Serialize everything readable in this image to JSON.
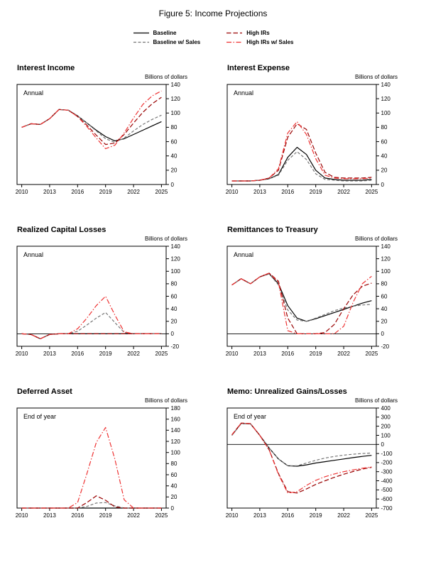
{
  "figure_title": "Figure 5: Income Projections",
  "legend": [
    {
      "label": "Baseline",
      "color": "#000000",
      "dash": "solid"
    },
    {
      "label": "Baseline w/ Sales",
      "color": "#777777",
      "dash": "dashed"
    },
    {
      "label": "High IRs",
      "color": "#990000",
      "dash": "longdash"
    },
    {
      "label": "High IRs w/ Sales",
      "color": "#ee3333",
      "dash": "dashdot"
    }
  ],
  "chart_data": [
    {
      "type": "line",
      "title": "Interest Income",
      "units_label": "Billions of dollars",
      "frequency_label": "Annual",
      "x": [
        2010,
        2011,
        2012,
        2013,
        2014,
        2015,
        2016,
        2017,
        2018,
        2019,
        2020,
        2021,
        2022,
        2023,
        2024,
        2025
      ],
      "x_ticks": [
        2010,
        2013,
        2016,
        2019,
        2022,
        2025
      ],
      "ylim": [
        0,
        140
      ],
      "y_ticks": [
        140,
        120,
        100,
        80,
        60,
        40,
        20,
        0
      ],
      "zero_line": false,
      "series": [
        {
          "name": "Baseline",
          "values": [
            80,
            85,
            84,
            92,
            105,
            104,
            96,
            86,
            76,
            67,
            61,
            64,
            70,
            76,
            82,
            88
          ]
        },
        {
          "name": "Baseline w/ Sales",
          "values": [
            80,
            85,
            84,
            92,
            105,
            104,
            96,
            86,
            75,
            64,
            59,
            65,
            75,
            84,
            91,
            97
          ]
        },
        {
          "name": "High IRs",
          "values": [
            80,
            85,
            84,
            92,
            105,
            104,
            95,
            83,
            69,
            56,
            58,
            70,
            86,
            101,
            113,
            122
          ]
        },
        {
          "name": "High IRs w/ Sales",
          "values": [
            80,
            85,
            84,
            92,
            105,
            104,
            95,
            81,
            65,
            50,
            55,
            72,
            93,
            112,
            124,
            131
          ]
        }
      ]
    },
    {
      "type": "line",
      "title": "Interest Expense",
      "units_label": "Billions of dollars",
      "frequency_label": "Annual",
      "x": [
        2010,
        2011,
        2012,
        2013,
        2014,
        2015,
        2016,
        2017,
        2018,
        2019,
        2020,
        2021,
        2022,
        2023,
        2024,
        2025
      ],
      "x_ticks": [
        2010,
        2013,
        2016,
        2019,
        2022,
        2025
      ],
      "ylim": [
        0,
        140
      ],
      "y_ticks": [
        140,
        120,
        100,
        80,
        60,
        40,
        20,
        0
      ],
      "zero_line": false,
      "series": [
        {
          "name": "Baseline",
          "values": [
            5,
            5,
            5,
            6,
            8,
            14,
            38,
            52,
            42,
            20,
            9,
            7,
            6,
            6,
            6,
            7
          ]
        },
        {
          "name": "Baseline w/ Sales",
          "values": [
            5,
            5,
            5,
            6,
            8,
            13,
            34,
            46,
            35,
            15,
            7,
            6,
            5,
            5,
            5,
            6
          ]
        },
        {
          "name": "High IRs",
          "values": [
            5,
            5,
            5,
            6,
            9,
            20,
            66,
            85,
            77,
            44,
            17,
            10,
            9,
            9,
            9,
            10
          ]
        },
        {
          "name": "High IRs w/ Sales",
          "values": [
            5,
            5,
            5,
            6,
            9,
            22,
            72,
            88,
            70,
            36,
            13,
            9,
            8,
            8,
            8,
            9
          ]
        }
      ]
    },
    {
      "type": "line",
      "title": "Realized Capital Losses",
      "units_label": "Billions of dollars",
      "frequency_label": "Annual",
      "x": [
        2010,
        2011,
        2012,
        2013,
        2014,
        2015,
        2016,
        2017,
        2018,
        2019,
        2020,
        2021,
        2022,
        2023,
        2024,
        2025
      ],
      "x_ticks": [
        2010,
        2013,
        2016,
        2019,
        2022,
        2025
      ],
      "ylim": [
        -20,
        140
      ],
      "y_ticks": [
        140,
        120,
        100,
        80,
        60,
        40,
        20,
        0,
        -20
      ],
      "zero_line": true,
      "series": [
        {
          "name": "Baseline",
          "values": [
            0,
            -1,
            -8,
            -1,
            0,
            0,
            0,
            0,
            0,
            0,
            0,
            0,
            0,
            0,
            0,
            0
          ]
        },
        {
          "name": "Baseline w/ Sales",
          "values": [
            0,
            -1,
            -8,
            -1,
            0,
            0,
            4,
            14,
            25,
            34,
            18,
            2,
            0,
            0,
            0,
            0
          ]
        },
        {
          "name": "High IRs",
          "values": [
            0,
            -1,
            -8,
            -1,
            0,
            0,
            0,
            0,
            0,
            0,
            0,
            0,
            0,
            0,
            0,
            0
          ]
        },
        {
          "name": "High IRs w/ Sales",
          "values": [
            0,
            -1,
            -8,
            -1,
            0,
            0,
            8,
            25,
            45,
            60,
            30,
            3,
            0,
            0,
            0,
            0
          ]
        }
      ]
    },
    {
      "type": "line",
      "title": "Remittances to Treasury",
      "units_label": "Billions of dollars",
      "frequency_label": "Annual",
      "x": [
        2010,
        2011,
        2012,
        2013,
        2014,
        2015,
        2016,
        2017,
        2018,
        2019,
        2020,
        2021,
        2022,
        2023,
        2024,
        2025
      ],
      "x_ticks": [
        2010,
        2013,
        2016,
        2019,
        2022,
        2025
      ],
      "ylim": [
        -20,
        140
      ],
      "y_ticks": [
        140,
        120,
        100,
        80,
        60,
        40,
        20,
        0,
        -20
      ],
      "zero_line": true,
      "series": [
        {
          "name": "Baseline",
          "values": [
            78,
            88,
            80,
            91,
            96,
            80,
            45,
            25,
            20,
            24,
            29,
            34,
            39,
            44,
            49,
            53
          ]
        },
        {
          "name": "Baseline w/ Sales",
          "values": [
            78,
            88,
            80,
            91,
            96,
            78,
            38,
            22,
            20,
            25,
            31,
            37,
            41,
            44,
            46,
            47
          ]
        },
        {
          "name": "High IRs",
          "values": [
            78,
            88,
            80,
            91,
            97,
            84,
            25,
            0,
            0,
            0,
            2,
            15,
            40,
            62,
            76,
            81
          ]
        },
        {
          "name": "High IRs w/ Sales",
          "values": [
            78,
            88,
            80,
            91,
            97,
            82,
            5,
            0,
            0,
            0,
            0,
            0,
            12,
            50,
            80,
            92
          ]
        }
      ]
    },
    {
      "type": "line",
      "title": "Deferred Asset",
      "units_label": "Billions of dollars",
      "frequency_label": "End of year",
      "x": [
        2010,
        2011,
        2012,
        2013,
        2014,
        2015,
        2016,
        2017,
        2018,
        2019,
        2020,
        2021,
        2022,
        2023,
        2024,
        2025
      ],
      "x_ticks": [
        2010,
        2013,
        2016,
        2019,
        2022,
        2025
      ],
      "ylim": [
        0,
        180
      ],
      "y_ticks": [
        180,
        160,
        140,
        120,
        100,
        80,
        60,
        40,
        20,
        0
      ],
      "zero_line": false,
      "series": [
        {
          "name": "Baseline",
          "values": [
            0,
            0,
            0,
            0,
            0,
            0,
            0,
            0,
            0,
            0,
            0,
            0,
            0,
            0,
            0,
            0
          ]
        },
        {
          "name": "Baseline w/ Sales",
          "values": [
            0,
            0,
            0,
            0,
            0,
            0,
            0,
            3,
            9,
            10,
            4,
            0,
            0,
            0,
            0,
            0
          ]
        },
        {
          "name": "High IRs",
          "values": [
            0,
            0,
            0,
            0,
            0,
            0,
            0,
            10,
            22,
            14,
            2,
            0,
            0,
            0,
            0,
            0
          ]
        },
        {
          "name": "High IRs w/ Sales",
          "values": [
            0,
            0,
            0,
            0,
            0,
            0,
            10,
            62,
            118,
            145,
            88,
            15,
            0,
            0,
            0,
            0
          ]
        }
      ]
    },
    {
      "type": "line",
      "title": "Memo: Unrealized Gains/Losses",
      "units_label": "Billions of dollars",
      "frequency_label": "End of year",
      "x": [
        2010,
        2011,
        2012,
        2013,
        2014,
        2015,
        2016,
        2017,
        2018,
        2019,
        2020,
        2021,
        2022,
        2023,
        2024,
        2025
      ],
      "x_ticks": [
        2010,
        2013,
        2016,
        2019,
        2022,
        2025
      ],
      "ylim": [
        -700,
        400
      ],
      "y_ticks": [
        400,
        300,
        200,
        100,
        0,
        -100,
        -200,
        -300,
        -400,
        -500,
        -600,
        -700
      ],
      "zero_line": true,
      "series": [
        {
          "name": "Baseline",
          "values": [
            100,
            230,
            225,
            100,
            -40,
            -160,
            -235,
            -240,
            -225,
            -205,
            -190,
            -175,
            -160,
            -145,
            -132,
            -120
          ]
        },
        {
          "name": "Baseline w/ Sales",
          "values": [
            100,
            230,
            225,
            100,
            -40,
            -160,
            -235,
            -235,
            -205,
            -175,
            -150,
            -132,
            -118,
            -108,
            -100,
            -95
          ]
        },
        {
          "name": "High IRs",
          "values": [
            105,
            235,
            228,
            100,
            -60,
            -320,
            -520,
            -535,
            -490,
            -440,
            -400,
            -362,
            -328,
            -298,
            -272,
            -252
          ]
        },
        {
          "name": "High IRs w/ Sales",
          "values": [
            105,
            235,
            228,
            100,
            -60,
            -330,
            -535,
            -520,
            -450,
            -395,
            -355,
            -325,
            -300,
            -280,
            -262,
            -248
          ]
        }
      ]
    }
  ]
}
